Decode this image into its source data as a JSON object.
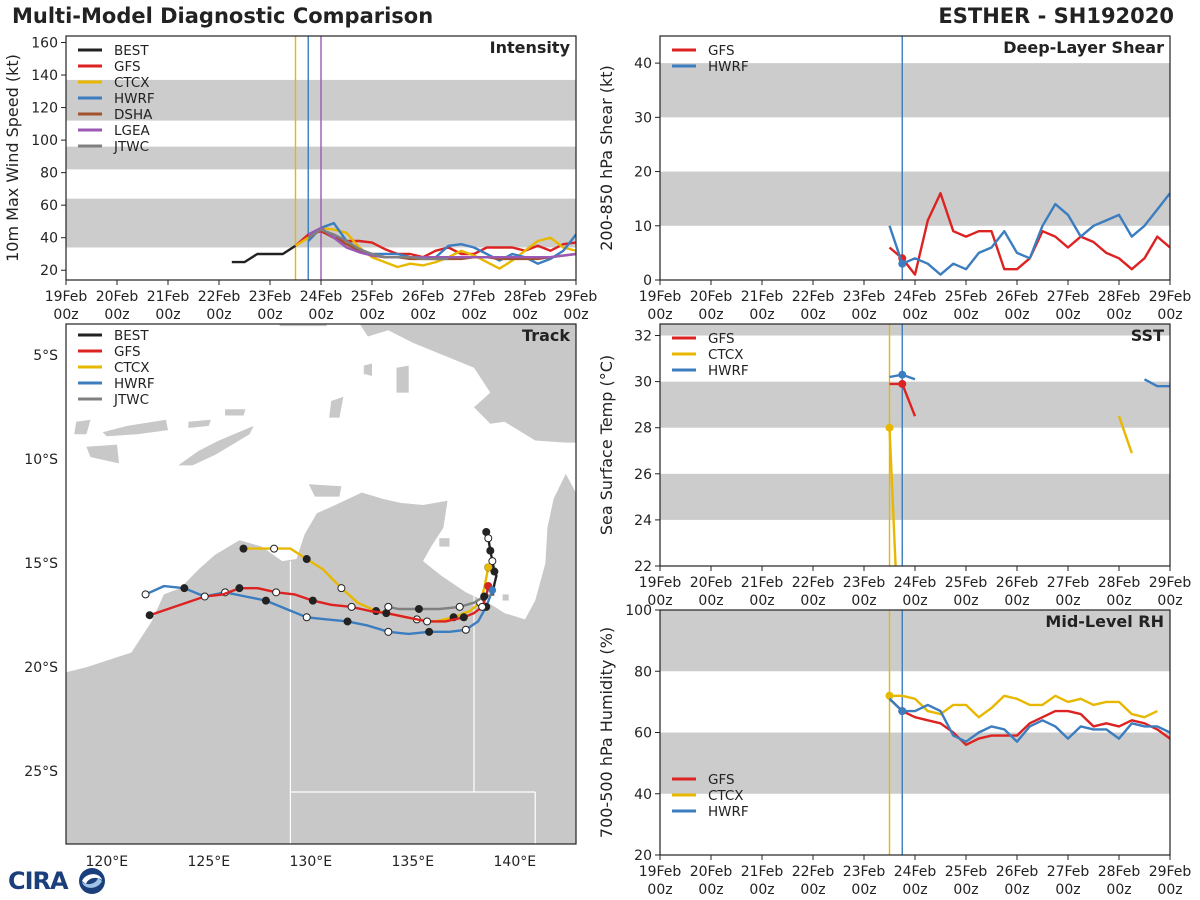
{
  "header": {
    "title_left": "Multi-Model Diagnostic Comparison",
    "title_right": "ESTHER - SH192020",
    "logo_text": "CIRA"
  },
  "colors": {
    "BEST": "#222222",
    "GFS": "#dd2222",
    "CTCX": "#e8b800",
    "HWRF": "#3b7dbf",
    "DSHA": "#a0522d",
    "LGEA": "#9b59b6",
    "JTWC": "#808080",
    "band": "#cccccc",
    "land": "#c8c8c8",
    "ocean": "#ffffff"
  },
  "time_axis": {
    "tick_labels": [
      "19Feb\n00z",
      "20Feb\n00z",
      "21Feb\n00z",
      "22Feb\n00z",
      "23Feb\n00z",
      "24Feb\n00z",
      "25Feb\n00z",
      "26Feb\n00z",
      "27Feb\n00z",
      "28Feb\n00z",
      "29Feb\n00z"
    ],
    "range_days": [
      0,
      10
    ],
    "init_lines_days": [
      4.5,
      4.75,
      5.0
    ]
  },
  "chart_data": [
    {
      "id": "intensity",
      "type": "line",
      "title": "Intensity",
      "ylabel": "10m Max Wind Speed (kt)",
      "ylim": [
        14,
        164
      ],
      "yticks": [
        20,
        40,
        60,
        80,
        100,
        120,
        140,
        160
      ],
      "bands": [
        [
          34,
          64
        ],
        [
          82,
          96
        ],
        [
          112,
          137
        ]
      ],
      "vlines_days": [
        [
          4.5,
          "CTCX"
        ],
        [
          4.75,
          "HWRF"
        ],
        [
          5.0,
          "LGEA"
        ]
      ],
      "legend": [
        "BEST",
        "GFS",
        "CTCX",
        "HWRF",
        "DSHA",
        "LGEA",
        "JTWC"
      ],
      "series": [
        {
          "name": "BEST",
          "x": [
            3.25,
            3.5,
            3.75,
            4.0,
            4.25,
            4.5
          ],
          "y": [
            25,
            25,
            30,
            30,
            30,
            35
          ]
        },
        {
          "name": "GFS",
          "x": [
            4.5,
            4.75,
            5.0,
            5.25,
            5.5,
            5.75,
            6.0,
            6.25,
            6.5,
            6.75,
            7.0,
            7.25,
            7.5,
            7.75,
            8.0,
            8.25,
            8.5,
            8.75,
            9.0,
            9.25,
            9.5,
            9.75,
            10.0
          ],
          "y": [
            35,
            42,
            44,
            40,
            38,
            38,
            37,
            33,
            30,
            30,
            28,
            32,
            34,
            30,
            30,
            34,
            34,
            34,
            32,
            35,
            32,
            36,
            37
          ]
        },
        {
          "name": "CTCX",
          "x": [
            4.5,
            4.75,
            5.0,
            5.25,
            5.5,
            5.75,
            6.0,
            6.25,
            6.5,
            6.75,
            7.0,
            7.25,
            7.5,
            7.75,
            8.0,
            8.25,
            8.5,
            8.75,
            9.0,
            9.25,
            9.5,
            9.75,
            10.0
          ],
          "y": [
            35,
            40,
            46,
            45,
            43,
            34,
            28,
            25,
            22,
            24,
            23,
            25,
            28,
            32,
            29,
            25,
            21,
            26,
            32,
            38,
            40,
            34,
            32
          ]
        },
        {
          "name": "HWRF",
          "x": [
            4.75,
            5.0,
            5.25,
            5.5,
            5.75,
            6.0,
            6.25,
            6.5,
            6.75,
            7.0,
            7.25,
            7.5,
            7.75,
            8.0,
            8.25,
            8.5,
            8.75,
            9.0,
            9.25,
            9.5,
            9.75,
            10.0
          ],
          "y": [
            38,
            46,
            49,
            38,
            33,
            30,
            30,
            30,
            28,
            28,
            28,
            35,
            36,
            34,
            30,
            26,
            30,
            28,
            24,
            27,
            32,
            42
          ]
        },
        {
          "name": "DSHA",
          "x": [
            4.75,
            5.0,
            5.25,
            5.5,
            5.75,
            6.0,
            6.25,
            6.5,
            6.75,
            7.0,
            7.25,
            7.5,
            7.75,
            8.0,
            8.25,
            8.5,
            8.75,
            9.0,
            9.25,
            9.5,
            9.75,
            10.0
          ],
          "y": [
            40,
            45,
            40,
            36,
            32,
            29,
            28,
            28,
            27,
            27,
            27,
            27,
            27,
            28,
            28,
            27,
            27,
            27,
            27,
            28,
            29,
            30
          ]
        },
        {
          "name": "LGEA",
          "x": [
            4.75,
            5.0,
            5.25,
            5.5,
            5.75,
            6.0,
            6.25,
            6.5,
            6.75,
            7.0,
            7.25,
            7.5,
            7.75,
            8.0,
            8.25,
            8.5,
            8.75,
            9.0,
            9.25,
            9.5,
            9.75,
            10.0
          ],
          "y": [
            42,
            46,
            40,
            34,
            31,
            29,
            28,
            28,
            28,
            28,
            28,
            28,
            28,
            28,
            28,
            28,
            28,
            28,
            28,
            28,
            29,
            30
          ]
        },
        {
          "name": "JTWC",
          "x": [
            4.75,
            5.0,
            5.25,
            5.5,
            5.75,
            6.0,
            6.25,
            6.5,
            6.75,
            7.0,
            7.25,
            7.5
          ],
          "y": [
            40,
            45,
            42,
            38,
            33,
            30,
            28,
            28,
            28,
            27,
            27,
            27
          ]
        }
      ]
    },
    {
      "id": "shear",
      "type": "line",
      "title": "Deep-Layer Shear",
      "ylabel": "200-850 hPa Shear (kt)",
      "ylim": [
        0,
        45
      ],
      "yticks": [
        0,
        10,
        20,
        30,
        40
      ],
      "bands": [
        [
          10,
          20
        ],
        [
          30,
          40
        ]
      ],
      "vlines_days": [
        [
          4.75,
          "HWRF"
        ]
      ],
      "legend": [
        "GFS",
        "HWRF"
      ],
      "series": [
        {
          "name": "GFS",
          "x": [
            4.5,
            4.75,
            5.0,
            5.25,
            5.5,
            5.75,
            6.0,
            6.25,
            6.5,
            6.75,
            7.0,
            7.25,
            7.5,
            7.75,
            8.0,
            8.25,
            8.5,
            8.75,
            9.0,
            9.25,
            9.5,
            9.75,
            10.0
          ],
          "y": [
            6,
            4,
            1,
            11,
            16,
            9,
            8,
            9,
            9,
            2,
            2,
            4,
            9,
            8,
            6,
            8,
            7,
            5,
            4,
            2,
            4,
            8,
            6
          ],
          "marker_x": 4.75,
          "marker_y": 4
        },
        {
          "name": "HWRF",
          "x": [
            4.5,
            4.75,
            5.0,
            5.25,
            5.5,
            5.75,
            6.0,
            6.25,
            6.5,
            6.75,
            7.0,
            7.25,
            7.5,
            7.75,
            8.0,
            8.25,
            8.5,
            8.75,
            9.0,
            9.25,
            9.5,
            9.75,
            10.0
          ],
          "y": [
            10,
            3,
            4,
            3,
            1,
            3,
            2,
            5,
            6,
            9,
            5,
            4,
            10,
            14,
            12,
            8,
            10,
            11,
            12,
            8,
            10,
            13,
            16
          ],
          "marker_x": 4.75,
          "marker_y": 3
        }
      ]
    },
    {
      "id": "sst",
      "type": "line",
      "title": "SST",
      "ylabel": "Sea Surface Temp (°C)",
      "ylim": [
        22,
        32.5
      ],
      "yticks": [
        22,
        24,
        26,
        28,
        30,
        32
      ],
      "bands": [
        [
          24,
          26
        ],
        [
          28,
          30
        ],
        [
          32,
          32.5
        ]
      ],
      "vlines_days": [
        [
          4.5,
          "CTCX"
        ],
        [
          4.75,
          "HWRF"
        ]
      ],
      "legend": [
        "GFS",
        "CTCX",
        "HWRF"
      ],
      "series": [
        {
          "name": "GFS",
          "x": [
            4.5,
            4.75,
            5.0
          ],
          "y": [
            29.9,
            29.9,
            28.5
          ],
          "marker_x": 4.75,
          "marker_y": 29.9
        },
        {
          "name": "CTCX",
          "x": [
            4.5,
            4.62
          ],
          "y": [
            28.0,
            22.0
          ],
          "marker_x": 4.5,
          "marker_y": 28.0
        },
        {
          "name": "CTCX",
          "x": [
            9.0,
            9.25
          ],
          "y": [
            28.5,
            26.9
          ]
        },
        {
          "name": "HWRF",
          "x": [
            4.5,
            4.75,
            5.0
          ],
          "y": [
            30.2,
            30.3,
            30.1
          ],
          "marker_x": 4.75,
          "marker_y": 30.3
        },
        {
          "name": "HWRF",
          "x": [
            9.5,
            9.75,
            10.0
          ],
          "y": [
            30.1,
            29.8,
            29.8
          ]
        }
      ]
    },
    {
      "id": "rh",
      "type": "line",
      "title": "Mid-Level RH",
      "ylabel": "700-500 hPa Humidity (%)",
      "ylim": [
        20,
        100
      ],
      "yticks": [
        20,
        40,
        60,
        80,
        100
      ],
      "bands": [
        [
          40,
          60
        ],
        [
          80,
          100
        ]
      ],
      "vlines_days": [
        [
          4.5,
          "CTCX"
        ],
        [
          4.75,
          "HWRF"
        ]
      ],
      "legend": [
        "GFS",
        "CTCX",
        "HWRF"
      ],
      "series": [
        {
          "name": "GFS",
          "x": [
            4.5,
            4.75,
            5.0,
            5.25,
            5.5,
            5.75,
            6.0,
            6.25,
            6.5,
            6.75,
            7.0,
            7.25,
            7.5,
            7.75,
            8.0,
            8.25,
            8.5,
            8.75,
            9.0,
            9.25,
            9.5,
            9.75,
            10.0
          ],
          "y": [
            71,
            67,
            65,
            64,
            63,
            60,
            56,
            58,
            59,
            59,
            59,
            63,
            65,
            67,
            67,
            66,
            62,
            63,
            62,
            64,
            63,
            61,
            58
          ],
          "marker_x": 4.75,
          "marker_y": 67
        },
        {
          "name": "CTCX",
          "x": [
            4.5,
            4.75,
            5.0,
            5.25,
            5.5,
            5.75,
            6.0,
            6.25,
            6.5,
            6.75,
            7.0,
            7.25,
            7.5,
            7.75,
            8.0,
            8.25,
            8.5,
            8.75,
            9.0,
            9.25,
            9.5,
            9.75
          ],
          "y": [
            72,
            72,
            71,
            67,
            66,
            69,
            69,
            65,
            68,
            72,
            71,
            69,
            69,
            72,
            70,
            71,
            69,
            70,
            70,
            66,
            65,
            67
          ],
          "marker_x": 4.5,
          "marker_y": 72
        },
        {
          "name": "HWRF",
          "x": [
            4.5,
            4.75,
            5.0,
            5.25,
            5.5,
            5.75,
            6.0,
            6.25,
            6.5,
            6.75,
            7.0,
            7.25,
            7.5,
            7.75,
            8.0,
            8.25,
            8.5,
            8.75,
            9.0,
            9.25,
            9.5,
            9.75,
            10.0
          ],
          "y": [
            71,
            67,
            67,
            69,
            67,
            59,
            57,
            60,
            62,
            61,
            57,
            62,
            64,
            62,
            58,
            62,
            61,
            61,
            58,
            63,
            62,
            62,
            60
          ],
          "marker_x": 4.75,
          "marker_y": 67
        }
      ]
    },
    {
      "id": "track",
      "type": "line",
      "title": "Track",
      "xlim": [
        118,
        143
      ],
      "ylim": [
        -28.5,
        -3.5
      ],
      "xticks": [
        120,
        125,
        130,
        135,
        140
      ],
      "xtick_labels": [
        "120°E",
        "125°E",
        "130°E",
        "135°E",
        "140°E"
      ],
      "yticks": [
        -5,
        -10,
        -15,
        -20,
        -25
      ],
      "ytick_labels": [
        "5°S",
        "10°S",
        "15°S",
        "20°S",
        "25°S"
      ],
      "legend": [
        "BEST",
        "GFS",
        "CTCX",
        "HWRF",
        "JTWC"
      ],
      "series": [
        {
          "name": "BEST",
          "lon": [
            138.6,
            138.7,
            138.8,
            138.9,
            139.0,
            139.1,
            139.0,
            138.9
          ],
          "lat": [
            -13.5,
            -13.8,
            -14.4,
            -14.9,
            -15.4,
            -15.6,
            -16.0,
            -16.5
          ],
          "marks": [
            0,
            1,
            2,
            3,
            4
          ]
        },
        {
          "name": "GFS",
          "lon": [
            138.7,
            138.6,
            138.4,
            138.0,
            137.5,
            136.6,
            135.7,
            134.7,
            133.7,
            132.9,
            132.0,
            131.0,
            130.1,
            129.2,
            128.3,
            127.4,
            126.5,
            125.7,
            124.8,
            123.9,
            123.0,
            122.1
          ],
          "lat": [
            -16.1,
            -16.6,
            -17.1,
            -17.4,
            -17.6,
            -17.8,
            -17.8,
            -17.6,
            -17.4,
            -17.3,
            -17.1,
            -17.0,
            -16.8,
            -16.5,
            -16.4,
            -16.2,
            -16.2,
            -16.5,
            -16.6,
            -16.9,
            -17.2,
            -17.5
          ],
          "marks": [
            0,
            2,
            4,
            6,
            8,
            10,
            12,
            14,
            16,
            18,
            21
          ]
        },
        {
          "name": "CTCX",
          "lon": [
            138.7,
            138.5,
            138.3,
            137.8,
            137.0,
            136.1,
            135.2,
            134.2,
            133.2,
            132.3,
            131.5,
            130.6,
            129.8,
            129.0,
            128.2,
            127.4,
            126.7
          ],
          "lat": [
            -15.2,
            -16.2,
            -16.9,
            -17.3,
            -17.6,
            -17.8,
            -17.7,
            -17.5,
            -17.3,
            -16.9,
            -16.2,
            -15.3,
            -14.8,
            -14.3,
            -14.3,
            -14.3,
            -14.3
          ],
          "marks": [
            0,
            2,
            4,
            6,
            8,
            10,
            12,
            14,
            16
          ]
        },
        {
          "name": "HWRF",
          "lon": [
            138.9,
            138.6,
            138.2,
            137.6,
            136.8,
            135.8,
            134.8,
            133.8,
            132.8,
            131.8,
            130.8,
            129.8,
            128.8,
            127.8,
            126.8,
            125.8,
            124.8,
            123.8,
            122.8,
            121.9
          ],
          "lat": [
            -16.3,
            -17.1,
            -17.8,
            -18.2,
            -18.3,
            -18.3,
            -18.4,
            -18.3,
            -18.0,
            -17.8,
            -17.7,
            -17.6,
            -17.2,
            -16.8,
            -16.6,
            -16.4,
            -16.6,
            -16.2,
            -16.1,
            -16.5
          ],
          "marks": [
            1,
            3,
            5,
            7,
            9,
            11,
            13,
            15,
            17,
            19
          ]
        },
        {
          "name": "JTWC",
          "lon": [
            139.0,
            138.5,
            138.0,
            137.3,
            136.3,
            135.3,
            134.3,
            133.8
          ],
          "lat": [
            -16.5,
            -16.6,
            -16.9,
            -17.1,
            -17.2,
            -17.2,
            -17.2,
            -17.1
          ],
          "marks": [
            1,
            3,
            5,
            7
          ]
        }
      ]
    }
  ]
}
